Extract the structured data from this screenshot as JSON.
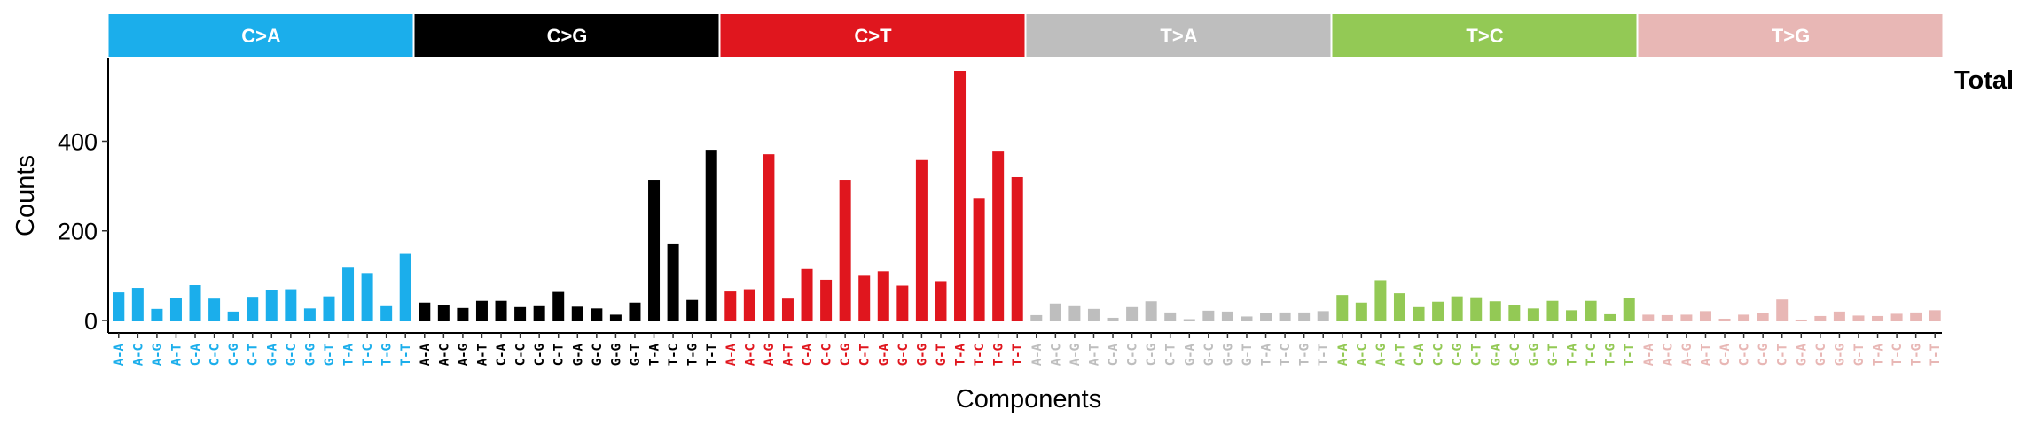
{
  "chart_data": {
    "type": "bar",
    "ylabel": "Counts",
    "xlabel": "Components",
    "panel_label": "Total",
    "yticks": [
      0,
      200,
      400
    ],
    "ylim": [
      0,
      580
    ],
    "grid": false,
    "groups": [
      {
        "name": "C>A",
        "color": "#1BAEEB",
        "categories": [
          "A-A",
          "A-C",
          "A-G",
          "A-T",
          "C-A",
          "C-C",
          "C-G",
          "C-T",
          "G-A",
          "G-C",
          "G-G",
          "G-T",
          "T-A",
          "T-C",
          "T-G",
          "T-T"
        ],
        "values": [
          63,
          73,
          26,
          50,
          79,
          49,
          20,
          53,
          68,
          70,
          27,
          54,
          118,
          106,
          32,
          149
        ]
      },
      {
        "name": "C>G",
        "color": "#000000",
        "categories": [
          "A-A",
          "A-C",
          "A-G",
          "A-T",
          "C-A",
          "C-C",
          "C-G",
          "C-T",
          "G-A",
          "G-C",
          "G-G",
          "G-T",
          "T-A",
          "T-C",
          "T-G",
          "T-T"
        ],
        "values": [
          40,
          35,
          28,
          44,
          44,
          30,
          32,
          64,
          31,
          27,
          13,
          40,
          314,
          170,
          46,
          381
        ]
      },
      {
        "name": "C>T",
        "color": "#E0161E",
        "categories": [
          "A-A",
          "A-C",
          "A-G",
          "A-T",
          "C-A",
          "C-C",
          "C-G",
          "C-T",
          "G-A",
          "G-C",
          "G-G",
          "G-T",
          "T-A",
          "T-C",
          "T-G",
          "T-T"
        ],
        "values": [
          65,
          70,
          371,
          49,
          115,
          91,
          314,
          100,
          110,
          78,
          358,
          88,
          557,
          272,
          377,
          320
        ]
      },
      {
        "name": "T>A",
        "color": "#BEBEBE",
        "categories": [
          "A-A",
          "A-C",
          "A-G",
          "A-T",
          "C-A",
          "C-C",
          "C-G",
          "C-T",
          "G-A",
          "G-C",
          "G-G",
          "G-T",
          "T-A",
          "T-C",
          "T-G",
          "T-T"
        ],
        "values": [
          12,
          38,
          32,
          26,
          6,
          30,
          43,
          18,
          3,
          22,
          20,
          9,
          16,
          18,
          18,
          21
        ]
      },
      {
        "name": "T>C",
        "color": "#93C955",
        "categories": [
          "A-A",
          "A-C",
          "A-G",
          "A-T",
          "C-A",
          "C-C",
          "C-G",
          "C-T",
          "G-A",
          "G-C",
          "G-G",
          "G-T",
          "T-A",
          "T-C",
          "T-G",
          "T-T"
        ],
        "values": [
          57,
          40,
          90,
          61,
          30,
          42,
          54,
          52,
          43,
          34,
          27,
          44,
          23,
          44,
          14,
          50
        ]
      },
      {
        "name": "T>G",
        "color": "#E8B7B5",
        "categories": [
          "A-A",
          "A-C",
          "A-G",
          "A-T",
          "C-A",
          "C-C",
          "C-G",
          "C-T",
          "G-A",
          "G-C",
          "G-G",
          "G-T",
          "T-A",
          "T-C",
          "T-G",
          "T-T"
        ],
        "values": [
          13,
          12,
          13,
          21,
          4,
          13,
          16,
          47,
          2,
          10,
          20,
          11,
          10,
          15,
          18,
          23
        ]
      }
    ]
  }
}
